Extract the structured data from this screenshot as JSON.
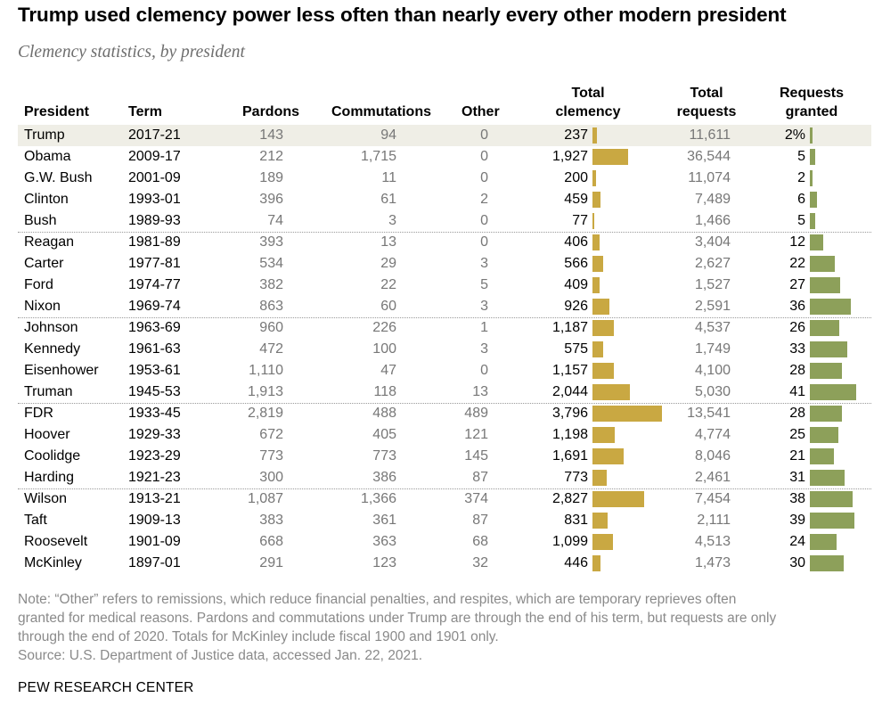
{
  "title": "Trump used clemency power less often than nearly every other modern president",
  "subtitle": "Clemency statistics, by president",
  "headers": {
    "president": "President",
    "term": "Term",
    "pardons": "Pardons",
    "commutations": "Commutations",
    "other": "Other",
    "total_clemency_1": "Total",
    "total_clemency_2": "clemency",
    "total_requests_1": "Total",
    "total_requests_2": "requests",
    "requests_granted_1": "Requests",
    "requests_granted_2": "granted"
  },
  "chart_data": {
    "type": "table",
    "title": "Trump used clemency power less often than nearly every other modern president",
    "subtitle": "Clemency statistics, by president",
    "columns": [
      "President",
      "Term",
      "Pardons",
      "Commutations",
      "Other",
      "Total clemency",
      "Total requests",
      "Requests granted"
    ],
    "highlight_row": "Trump",
    "colors": {
      "clemency_bar": "#c9a842",
      "granted_bar": "#8da05a",
      "highlight": "#efeee6"
    },
    "groups_end_after": [
      "Bush",
      "Nixon",
      "Truman",
      "Harding"
    ],
    "rows": [
      {
        "president": "Trump",
        "term": "2017-21",
        "pardons": "143",
        "commutations": "94",
        "other": "0",
        "total_clemency": "237",
        "total_clemency_value": 237,
        "total_requests": "11,611",
        "requests_granted": "2%",
        "requests_granted_value": 2
      },
      {
        "president": "Obama",
        "term": "2009-17",
        "pardons": "212",
        "commutations": "1,715",
        "other": "0",
        "total_clemency": "1,927",
        "total_clemency_value": 1927,
        "total_requests": "36,544",
        "requests_granted": "5",
        "requests_granted_value": 5
      },
      {
        "president": "G.W. Bush",
        "term": "2001-09",
        "pardons": "189",
        "commutations": "11",
        "other": "0",
        "total_clemency": "200",
        "total_clemency_value": 200,
        "total_requests": "11,074",
        "requests_granted": "2",
        "requests_granted_value": 2
      },
      {
        "president": "Clinton",
        "term": "1993-01",
        "pardons": "396",
        "commutations": "61",
        "other": "2",
        "total_clemency": "459",
        "total_clemency_value": 459,
        "total_requests": "7,489",
        "requests_granted": "6",
        "requests_granted_value": 6
      },
      {
        "president": "Bush",
        "term": "1989-93",
        "pardons": "74",
        "commutations": "3",
        "other": "0",
        "total_clemency": "77",
        "total_clemency_value": 77,
        "total_requests": "1,466",
        "requests_granted": "5",
        "requests_granted_value": 5
      },
      {
        "president": "Reagan",
        "term": "1981-89",
        "pardons": "393",
        "commutations": "13",
        "other": "0",
        "total_clemency": "406",
        "total_clemency_value": 406,
        "total_requests": "3,404",
        "requests_granted": "12",
        "requests_granted_value": 12
      },
      {
        "president": "Carter",
        "term": "1977-81",
        "pardons": "534",
        "commutations": "29",
        "other": "3",
        "total_clemency": "566",
        "total_clemency_value": 566,
        "total_requests": "2,627",
        "requests_granted": "22",
        "requests_granted_value": 22
      },
      {
        "president": "Ford",
        "term": "1974-77",
        "pardons": "382",
        "commutations": "22",
        "other": "5",
        "total_clemency": "409",
        "total_clemency_value": 409,
        "total_requests": "1,527",
        "requests_granted": "27",
        "requests_granted_value": 27
      },
      {
        "president": "Nixon",
        "term": "1969-74",
        "pardons": "863",
        "commutations": "60",
        "other": "3",
        "total_clemency": "926",
        "total_clemency_value": 926,
        "total_requests": "2,591",
        "requests_granted": "36",
        "requests_granted_value": 36
      },
      {
        "president": "Johnson",
        "term": "1963-69",
        "pardons": "960",
        "commutations": "226",
        "other": "1",
        "total_clemency": "1,187",
        "total_clemency_value": 1187,
        "total_requests": "4,537",
        "requests_granted": "26",
        "requests_granted_value": 26
      },
      {
        "president": "Kennedy",
        "term": "1961-63",
        "pardons": "472",
        "commutations": "100",
        "other": "3",
        "total_clemency": "575",
        "total_clemency_value": 575,
        "total_requests": "1,749",
        "requests_granted": "33",
        "requests_granted_value": 33
      },
      {
        "president": "Eisenhower",
        "term": "1953-61",
        "pardons": "1,110",
        "commutations": "47",
        "other": "0",
        "total_clemency": "1,157",
        "total_clemency_value": 1157,
        "total_requests": "4,100",
        "requests_granted": "28",
        "requests_granted_value": 28
      },
      {
        "president": "Truman",
        "term": "1945-53",
        "pardons": "1,913",
        "commutations": "118",
        "other": "13",
        "total_clemency": "2,044",
        "total_clemency_value": 2044,
        "total_requests": "5,030",
        "requests_granted": "41",
        "requests_granted_value": 41
      },
      {
        "president": "FDR",
        "term": "1933-45",
        "pardons": "2,819",
        "commutations": "488",
        "other": "489",
        "total_clemency": "3,796",
        "total_clemency_value": 3796,
        "total_requests": "13,541",
        "requests_granted": "28",
        "requests_granted_value": 28
      },
      {
        "president": "Hoover",
        "term": "1929-33",
        "pardons": "672",
        "commutations": "405",
        "other": "121",
        "total_clemency": "1,198",
        "total_clemency_value": 1198,
        "total_requests": "4,774",
        "requests_granted": "25",
        "requests_granted_value": 25
      },
      {
        "president": "Coolidge",
        "term": "1923-29",
        "pardons": "773",
        "commutations": "773",
        "other": "145",
        "total_clemency": "1,691",
        "total_clemency_value": 1691,
        "total_requests": "8,046",
        "requests_granted": "21",
        "requests_granted_value": 21
      },
      {
        "president": "Harding",
        "term": "1921-23",
        "pardons": "300",
        "commutations": "386",
        "other": "87",
        "total_clemency": "773",
        "total_clemency_value": 773,
        "total_requests": "2,461",
        "requests_granted": "31",
        "requests_granted_value": 31
      },
      {
        "president": "Wilson",
        "term": "1913-21",
        "pardons": "1,087",
        "commutations": "1,366",
        "other": "374",
        "total_clemency": "2,827",
        "total_clemency_value": 2827,
        "total_requests": "7,454",
        "requests_granted": "38",
        "requests_granted_value": 38
      },
      {
        "president": "Taft",
        "term": "1909-13",
        "pardons": "383",
        "commutations": "361",
        "other": "87",
        "total_clemency": "831",
        "total_clemency_value": 831,
        "total_requests": "2,111",
        "requests_granted": "39",
        "requests_granted_value": 39
      },
      {
        "president": "Roosevelt",
        "term": "1901-09",
        "pardons": "668",
        "commutations": "363",
        "other": "68",
        "total_clemency": "1,099",
        "total_clemency_value": 1099,
        "total_requests": "4,513",
        "requests_granted": "24",
        "requests_granted_value": 24
      },
      {
        "president": "McKinley",
        "term": "1897-01",
        "pardons": "291",
        "commutations": "123",
        "other": "32",
        "total_clemency": "446",
        "total_clemency_value": 446,
        "total_requests": "1,473",
        "requests_granted": "30",
        "requests_granted_value": 30
      }
    ]
  },
  "note": {
    "line1": "Note: “Other” refers to remissions, which reduce financial penalties, and respites, which are temporary reprieves often",
    "line2": "granted for medical reasons. Pardons and commutations under Trump are through the end of his term, but requests are only",
    "line3": "through the end of 2020. Totals for McKinley include fiscal 1900 and 1901 only.",
    "source": "Source: U.S. Department of Justice data, accessed Jan. 22, 2021."
  },
  "credit": "PEW RESEARCH CENTER"
}
